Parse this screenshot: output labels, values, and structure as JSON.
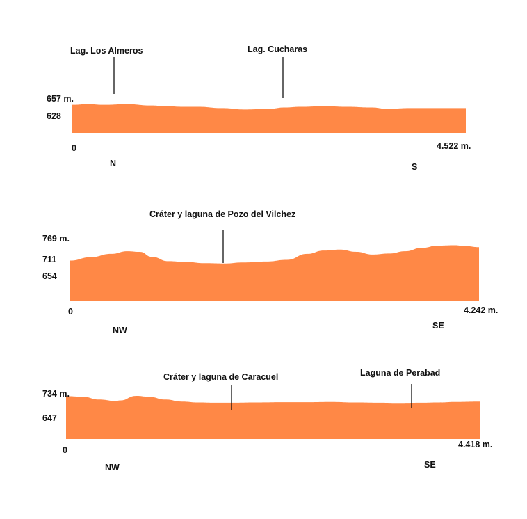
{
  "chart_data": [
    {
      "type": "area",
      "style": {
        "fill_color": "#ff8846",
        "background": "#ffffff"
      },
      "x_start_label": "0",
      "x_end_label": "4.522 m.",
      "direction_start": "N",
      "direction_end": "S",
      "y_labels": [
        "657 m.",
        "628"
      ],
      "x": [
        0,
        0.04,
        0.08,
        0.14,
        0.2,
        0.24,
        0.28,
        0.32,
        0.38,
        0.44,
        0.5,
        0.54,
        0.58,
        0.64,
        0.7,
        0.76,
        0.8,
        0.86,
        0.92,
        0.96,
        1.0
      ],
      "values": [
        646,
        647,
        646,
        647,
        645,
        644,
        643,
        643,
        641,
        639,
        640,
        642,
        643,
        644,
        643,
        642,
        640,
        641,
        641,
        641,
        641
      ],
      "ylim": [
        628,
        657
      ],
      "annotations": [
        {
          "label": "Lag.  Los Almeros",
          "at": 0.105
        },
        {
          "label": "Lag. Cucharas",
          "at": 0.53
        }
      ]
    },
    {
      "type": "area",
      "style": {
        "fill_color": "#ff8846",
        "background": "#ffffff"
      },
      "x_start_label": "0",
      "x_end_label": "4.242 m.",
      "direction_start": "NW",
      "direction_end": "SE",
      "y_labels": [
        "769 m.",
        "711",
        "654"
      ],
      "x": [
        0,
        0.05,
        0.1,
        0.14,
        0.17,
        0.2,
        0.24,
        0.28,
        0.33,
        0.38,
        0.42,
        0.48,
        0.53,
        0.58,
        0.62,
        0.66,
        0.7,
        0.74,
        0.78,
        0.82,
        0.86,
        0.9,
        0.94,
        0.97,
        1.0
      ],
      "values": [
        699,
        709,
        719,
        727,
        725,
        710,
        697,
        695,
        691,
        690,
        693,
        696,
        701,
        719,
        729,
        732,
        725,
        717,
        720,
        727,
        737,
        744,
        745,
        742,
        739
      ],
      "ylim": [
        654,
        769
      ],
      "annotations": [
        {
          "label": "Cráter y laguna de Pozo del Vilchez",
          "at": 0.375
        }
      ]
    },
    {
      "type": "area",
      "style": {
        "fill_color": "#ff8846",
        "background": "#ffffff"
      },
      "x_start_label": "0",
      "x_end_label": "4.418 m.",
      "direction_start": "NW",
      "direction_end": "SE",
      "y_labels": [
        "734 m.",
        "647"
      ],
      "x": [
        0,
        0.04,
        0.08,
        0.12,
        0.13,
        0.17,
        0.2,
        0.24,
        0.28,
        0.32,
        0.36,
        0.4,
        0.46,
        0.52,
        0.58,
        0.64,
        0.7,
        0.76,
        0.8,
        0.86,
        0.9,
        0.94,
        1.0
      ],
      "values": [
        721,
        719,
        709,
        704,
        706,
        722,
        719,
        709,
        702,
        699,
        698,
        698,
        699,
        700,
        700,
        701,
        699,
        698,
        697,
        698,
        699,
        701,
        702
      ],
      "ylim": [
        647,
        734
      ],
      "annotations": [
        {
          "label": "Cráter y laguna de Caracuel",
          "at": 0.37
        },
        {
          "label": "Laguna de Perabad",
          "at": 0.83
        }
      ]
    }
  ]
}
